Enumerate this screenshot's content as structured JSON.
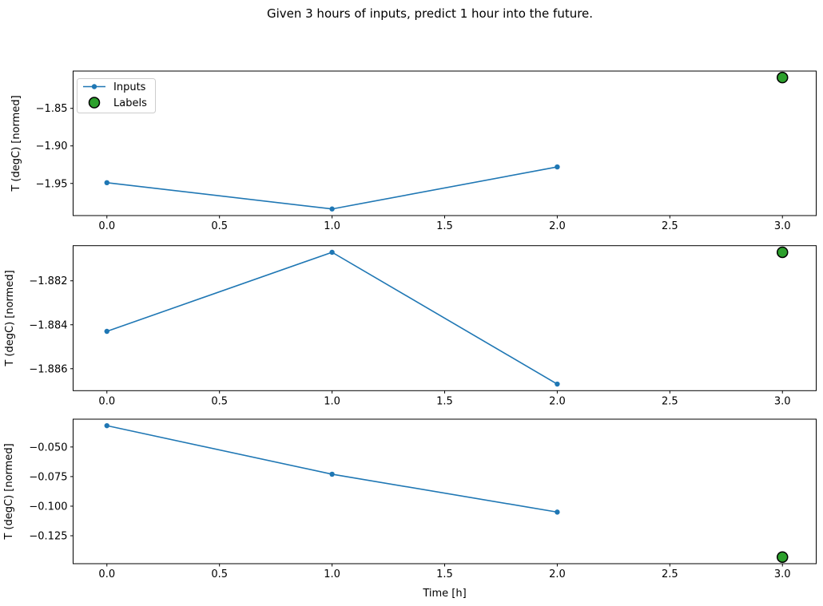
{
  "title": "Given 3 hours of inputs, predict 1 hour into the future.",
  "legend": {
    "inputs": "Inputs",
    "labels": "Labels",
    "position": "upper left"
  },
  "colors": {
    "inputs": "#1f77b4",
    "labels": "#2ca02c",
    "label_edge": "#000000",
    "axis": "#000000",
    "legend_border": "#cccccc",
    "background": "#ffffff"
  },
  "chart_data": [
    {
      "type": "line",
      "ylabel": "T (degC) [normed]",
      "xlabel": "",
      "grid": false,
      "legend_visible": true,
      "xlim": [
        -0.15,
        3.15
      ],
      "xticks": [
        0.0,
        0.5,
        1.0,
        1.5,
        2.0,
        2.5,
        3.0
      ],
      "xtick_labels": [
        "0.0",
        "0.5",
        "1.0",
        "1.5",
        "2.0",
        "2.5",
        "3.0"
      ],
      "ylim": [
        -1.9928,
        -1.8003
      ],
      "yticks": [
        -1.85,
        -1.9,
        -1.95
      ],
      "ytick_labels": [
        "−1.85",
        "−1.90",
        "−1.95"
      ],
      "series": [
        {
          "name": "Inputs",
          "kind": "line_marker",
          "x": [
            0,
            1,
            2
          ],
          "y": [
            -1.949,
            -1.984,
            -1.928
          ]
        },
        {
          "name": "Labels",
          "kind": "scatter",
          "x": [
            3
          ],
          "y": [
            -1.809
          ]
        }
      ]
    },
    {
      "type": "line",
      "ylabel": "T (degC) [normed]",
      "xlabel": "",
      "grid": false,
      "legend_visible": false,
      "xlim": [
        -0.15,
        3.15
      ],
      "xticks": [
        0.0,
        0.5,
        1.0,
        1.5,
        2.0,
        2.5,
        3.0
      ],
      "xtick_labels": [
        "0.0",
        "0.5",
        "1.0",
        "1.5",
        "2.0",
        "2.5",
        "3.0"
      ],
      "ylim": [
        -1.887,
        -1.8804
      ],
      "yticks": [
        -1.882,
        -1.884,
        -1.886
      ],
      "ytick_labels": [
        "−1.882",
        "−1.884",
        "−1.886"
      ],
      "series": [
        {
          "name": "Inputs",
          "kind": "line_marker",
          "x": [
            0,
            1,
            2
          ],
          "y": [
            -1.8843,
            -1.8807,
            -1.8867
          ]
        },
        {
          "name": "Labels",
          "kind": "scatter",
          "x": [
            3
          ],
          "y": [
            -1.8807
          ]
        }
      ]
    },
    {
      "type": "line",
      "ylabel": "T (degC) [normed]",
      "xlabel": "Time [h]",
      "grid": false,
      "legend_visible": false,
      "xlim": [
        -0.15,
        3.15
      ],
      "xticks": [
        0.0,
        0.5,
        1.0,
        1.5,
        2.0,
        2.5,
        3.0
      ],
      "xtick_labels": [
        "0.0",
        "0.5",
        "1.0",
        "1.5",
        "2.0",
        "2.5",
        "3.0"
      ],
      "ylim": [
        -0.1486,
        -0.0265
      ],
      "yticks": [
        -0.05,
        -0.075,
        -0.1,
        -0.125
      ],
      "ytick_labels": [
        "−0.050",
        "−0.075",
        "−0.100",
        "−0.125"
      ],
      "series": [
        {
          "name": "Inputs",
          "kind": "line_marker",
          "x": [
            0,
            1,
            2
          ],
          "y": [
            -0.032,
            -0.073,
            -0.105
          ]
        },
        {
          "name": "Labels",
          "kind": "scatter",
          "x": [
            3
          ],
          "y": [
            -0.143
          ]
        }
      ]
    }
  ]
}
